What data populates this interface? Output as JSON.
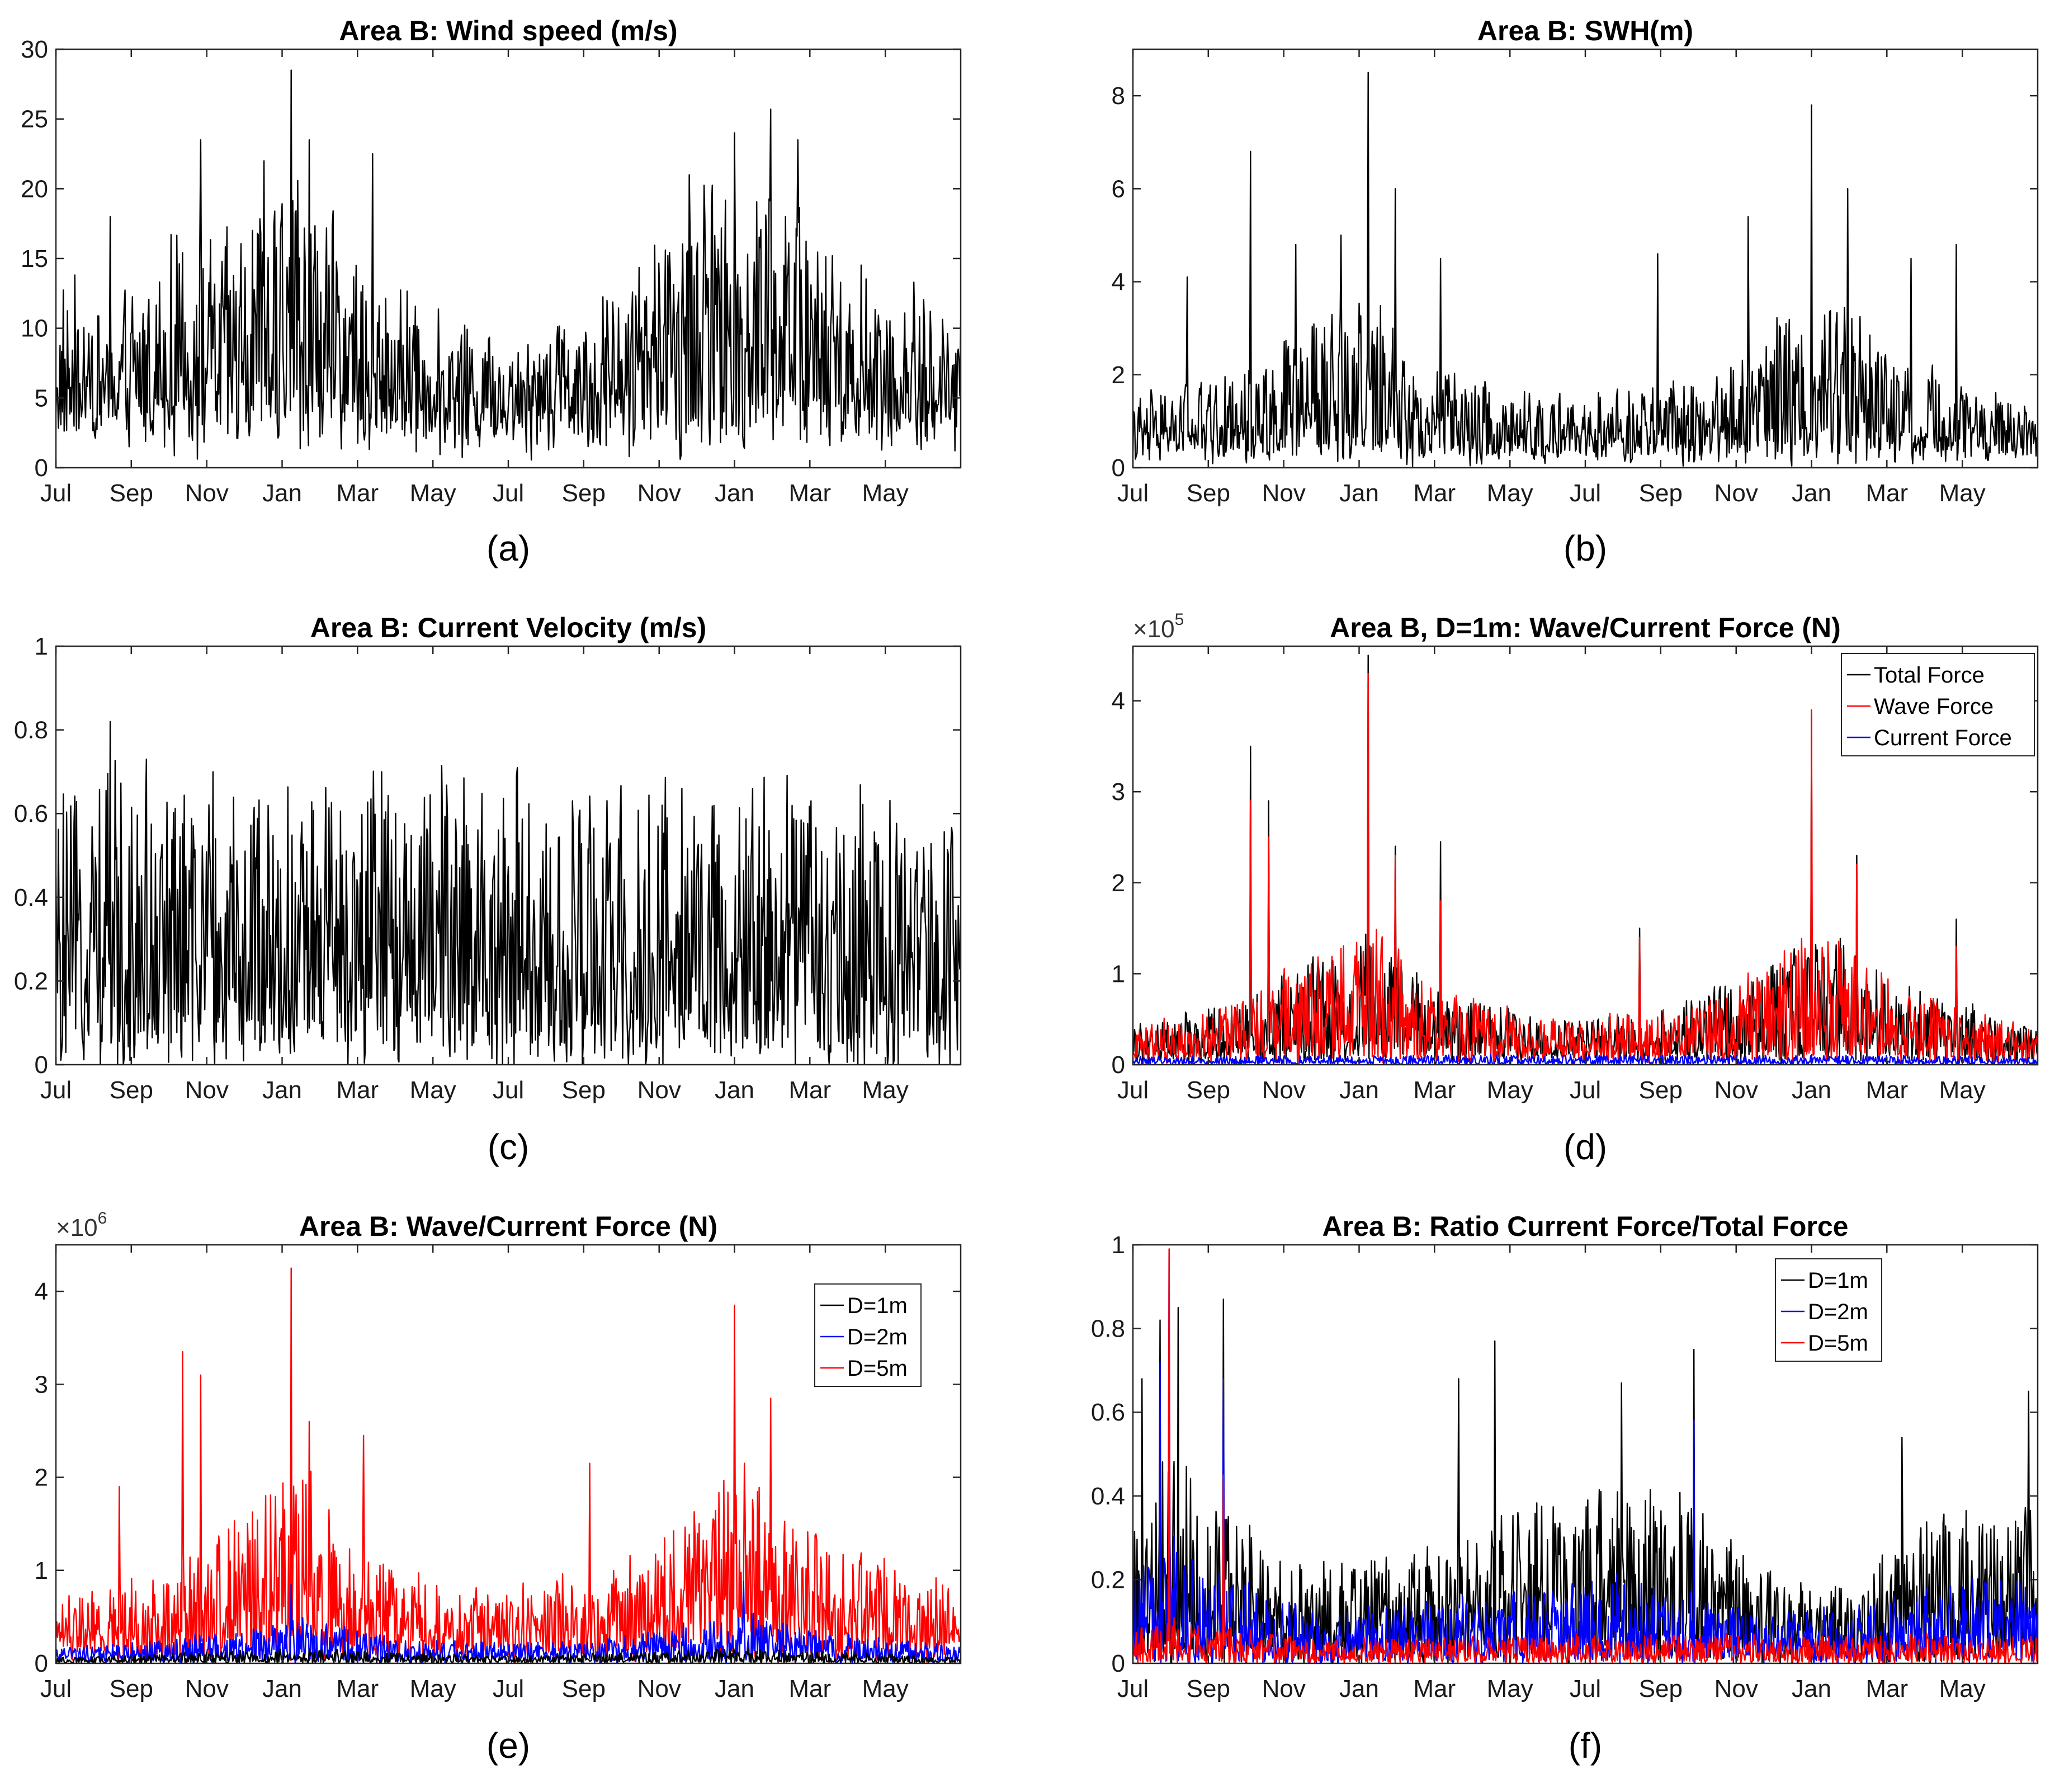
{
  "colors": {
    "black": "#000000",
    "red": "#ff0000",
    "blue": "#0000ff"
  },
  "chart_data": [
    {
      "id": "a",
      "type": "line",
      "caption": "(a)",
      "title": "Area B: Wind speed (m/s)",
      "x_tick_labels": [
        "Jul",
        "Sep",
        "Nov",
        "Jan",
        "Mar",
        "May",
        "Jul",
        "Sep",
        "Nov",
        "Jan",
        "Mar",
        "May"
      ],
      "ylim": [
        0,
        30
      ],
      "y_tick_labels": [
        "0",
        "5",
        "10",
        "15",
        "20",
        "25",
        "30"
      ],
      "series": [
        {
          "name": "Wind speed",
          "color": "#000000",
          "base": 4,
          "amp": 6,
          "envelope": [
            [
              0,
              9
            ],
            [
              0.06,
              8
            ],
            [
              0.12,
              12
            ],
            [
              0.17,
              13
            ],
            [
              0.21,
              14
            ],
            [
              0.26,
              18
            ],
            [
              0.3,
              14
            ],
            [
              0.36,
              10
            ],
            [
              0.45,
              7
            ],
            [
              0.52,
              7
            ],
            [
              0.6,
              9
            ],
            [
              0.67,
              13
            ],
            [
              0.72,
              17
            ],
            [
              0.78,
              18
            ],
            [
              0.82,
              15
            ],
            [
              0.88,
              11
            ],
            [
              0.94,
              9
            ],
            [
              1,
              8
            ]
          ],
          "peaks": [
            [
              0.06,
              18
            ],
            [
              0.16,
              23.5
            ],
            [
              0.23,
              22
            ],
            [
              0.26,
              28.5
            ],
            [
              0.28,
              23.5
            ],
            [
              0.35,
              22.5
            ],
            [
              0.7,
              21
            ],
            [
              0.75,
              24
            ],
            [
              0.79,
              25.7
            ],
            [
              0.82,
              23.5
            ]
          ]
        }
      ]
    },
    {
      "id": "b",
      "type": "line",
      "caption": "(b)",
      "title": "Area B: SWH(m)",
      "x_tick_labels": [
        "Jul",
        "Sep",
        "Nov",
        "Jan",
        "Mar",
        "May",
        "Jul",
        "Sep",
        "Nov",
        "Jan",
        "Mar",
        "May"
      ],
      "ylim": [
        0,
        9
      ],
      "y_tick_labels": [
        "0",
        "2",
        "4",
        "6",
        "8"
      ],
      "series": [
        {
          "name": "SWH",
          "color": "#000000",
          "base": 0.4,
          "amp": 0.7,
          "envelope": [
            [
              0,
              1
            ],
            [
              0.05,
              1.5
            ],
            [
              0.12,
              1.6
            ],
            [
              0.17,
              2.5
            ],
            [
              0.23,
              3
            ],
            [
              0.27,
              3.2
            ],
            [
              0.32,
              2
            ],
            [
              0.4,
              1.3
            ],
            [
              0.48,
              1.1
            ],
            [
              0.56,
              1.3
            ],
            [
              0.63,
              1.6
            ],
            [
              0.69,
              2.4
            ],
            [
              0.74,
              3.2
            ],
            [
              0.78,
              3.4
            ],
            [
              0.83,
              2.5
            ],
            [
              0.9,
              1.5
            ],
            [
              1,
              1
            ]
          ],
          "peaks": [
            [
              0.06,
              4.1
            ],
            [
              0.13,
              6.8
            ],
            [
              0.18,
              4.8
            ],
            [
              0.23,
              5
            ],
            [
              0.26,
              8.5
            ],
            [
              0.29,
              6
            ],
            [
              0.34,
              4.5
            ],
            [
              0.58,
              4.6
            ],
            [
              0.68,
              5.4
            ],
            [
              0.75,
              7.8
            ],
            [
              0.79,
              6
            ],
            [
              0.86,
              4.5
            ],
            [
              0.91,
              4.8
            ]
          ]
        }
      ]
    },
    {
      "id": "c",
      "type": "line",
      "caption": "(c)",
      "title": "Area B: Current Velocity (m/s)",
      "x_tick_labels": [
        "Jul",
        "Sep",
        "Nov",
        "Jan",
        "Mar",
        "May",
        "Jul",
        "Sep",
        "Nov",
        "Jan",
        "Mar",
        "May"
      ],
      "ylim": [
        0,
        1
      ],
      "y_tick_labels": [
        "0",
        "0.2",
        "0.4",
        "0.6",
        "0.8",
        "1"
      ],
      "series": [
        {
          "name": "Current velocity",
          "color": "#000000",
          "base": 0.05,
          "amp": 0.3,
          "envelope": [
            [
              0,
              0.55
            ],
            [
              0.06,
              0.65
            ],
            [
              0.12,
              0.6
            ],
            [
              0.25,
              0.6
            ],
            [
              0.4,
              0.62
            ],
            [
              0.55,
              0.6
            ],
            [
              0.7,
              0.6
            ],
            [
              0.85,
              0.6
            ],
            [
              1,
              0.55
            ]
          ],
          "peaks": [
            [
              0.06,
              0.82
            ],
            [
              0.1,
              0.73
            ],
            [
              0.36,
              0.7
            ],
            [
              0.51,
              0.71
            ],
            [
              0.77,
              0.66
            ]
          ]
        }
      ]
    },
    {
      "id": "d",
      "type": "line",
      "caption": "(d)",
      "title": "Area B, D=1m: Wave/Current Force (N)",
      "axis_multiplier": "×10",
      "axis_multiplier_exp": "5",
      "x_tick_labels": [
        "Jul",
        "Sep",
        "Nov",
        "Jan",
        "Mar",
        "May",
        "Jul",
        "Sep",
        "Nov",
        "Jan",
        "Mar",
        "May"
      ],
      "ylim": [
        0,
        4.6
      ],
      "y_tick_labels": [
        "0",
        "1",
        "2",
        "3",
        "4"
      ],
      "legend": [
        "Total Force",
        "Wave Force",
        "Current Force"
      ],
      "series": [
        {
          "name": "Total Force",
          "color": "#000000",
          "base": 0.1,
          "amp": 0.3,
          "envelope": [
            [
              0,
              0.3
            ],
            [
              0.12,
              0.6
            ],
            [
              0.2,
              1.1
            ],
            [
              0.27,
              1.4
            ],
            [
              0.32,
              0.8
            ],
            [
              0.45,
              0.4
            ],
            [
              0.6,
              0.5
            ],
            [
              0.7,
              1
            ],
            [
              0.77,
              1.4
            ],
            [
              0.84,
              0.8
            ],
            [
              1,
              0.3
            ]
          ],
          "peaks": [
            [
              0.13,
              3.5
            ],
            [
              0.15,
              2.9
            ],
            [
              0.26,
              4.5
            ],
            [
              0.29,
              2.4
            ],
            [
              0.34,
              2.45
            ],
            [
              0.56,
              1.5
            ],
            [
              0.75,
              3.85
            ],
            [
              0.8,
              2.3
            ],
            [
              0.91,
              1.6
            ]
          ]
        },
        {
          "name": "Wave Force",
          "color": "#ff0000",
          "base": 0.1,
          "amp": 0.3,
          "envelope": [
            [
              0,
              0.3
            ],
            [
              0.12,
              0.6
            ],
            [
              0.2,
              1.1
            ],
            [
              0.27,
              1.4
            ],
            [
              0.32,
              0.8
            ],
            [
              0.45,
              0.4
            ],
            [
              0.6,
              0.5
            ],
            [
              0.7,
              1
            ],
            [
              0.77,
              1.4
            ],
            [
              0.84,
              0.8
            ],
            [
              1,
              0.3
            ]
          ],
          "peaks": [
            [
              0.13,
              2.9
            ],
            [
              0.15,
              2.5
            ],
            [
              0.26,
              4.3
            ],
            [
              0.29,
              2.3
            ],
            [
              0.34,
              1.8
            ],
            [
              0.56,
              1.4
            ],
            [
              0.75,
              3.9
            ],
            [
              0.8,
              2.2
            ],
            [
              0.91,
              1.3
            ]
          ]
        },
        {
          "name": "Current Force",
          "color": "#0000ff",
          "base": 0.01,
          "amp": 0.04,
          "envelope": [
            [
              0,
              0.08
            ],
            [
              0.5,
              0.1
            ],
            [
              1,
              0.08
            ]
          ],
          "peaks": []
        }
      ]
    },
    {
      "id": "e",
      "type": "line",
      "caption": "(e)",
      "title": "Area B: Wave/Current Force (N)",
      "axis_multiplier": "×10",
      "axis_multiplier_exp": "6",
      "x_tick_labels": [
        "Jul",
        "Sep",
        "Nov",
        "Jan",
        "Mar",
        "May",
        "Jul",
        "Sep",
        "Nov",
        "Jan",
        "Mar",
        "May"
      ],
      "ylim": [
        0,
        4.5
      ],
      "y_tick_labels": [
        "0",
        "1",
        "2",
        "3",
        "4"
      ],
      "legend": [
        "D=1m",
        "D=2m",
        "D=5m"
      ],
      "series": [
        {
          "name": "D=5m",
          "color": "#ff0000",
          "base": 0.15,
          "amp": 0.45,
          "envelope": [
            [
              0,
              0.5
            ],
            [
              0.12,
              0.9
            ],
            [
              0.2,
              1.4
            ],
            [
              0.27,
              2
            ],
            [
              0.33,
              1.1
            ],
            [
              0.45,
              0.6
            ],
            [
              0.6,
              0.8
            ],
            [
              0.7,
              1.4
            ],
            [
              0.76,
              2
            ],
            [
              0.84,
              1.2
            ],
            [
              1,
              0.6
            ]
          ],
          "peaks": [
            [
              0.07,
              1.9
            ],
            [
              0.14,
              3.35
            ],
            [
              0.16,
              3.1
            ],
            [
              0.26,
              4.25
            ],
            [
              0.28,
              2.6
            ],
            [
              0.34,
              2.45
            ],
            [
              0.59,
              2.15
            ],
            [
              0.75,
              3.85
            ],
            [
              0.79,
              2.85
            ]
          ]
        },
        {
          "name": "D=2m",
          "color": "#0000ff",
          "base": 0.04,
          "amp": 0.12,
          "envelope": [
            [
              0,
              0.12
            ],
            [
              0.2,
              0.3
            ],
            [
              0.27,
              0.45
            ],
            [
              0.4,
              0.18
            ],
            [
              0.6,
              0.2
            ],
            [
              0.76,
              0.5
            ],
            [
              0.85,
              0.3
            ],
            [
              1,
              0.15
            ]
          ],
          "peaks": [
            [
              0.26,
              0.85
            ],
            [
              0.76,
              0.88
            ]
          ]
        },
        {
          "name": "D=1m",
          "color": "#000000",
          "base": 0.01,
          "amp": 0.04,
          "envelope": [
            [
              0,
              0.05
            ],
            [
              0.27,
              0.15
            ],
            [
              0.5,
              0.07
            ],
            [
              0.76,
              0.15
            ],
            [
              1,
              0.06
            ]
          ],
          "peaks": []
        }
      ]
    },
    {
      "id": "f",
      "type": "line",
      "caption": "(f)",
      "title": "Area B: Ratio Current Force/Total Force",
      "x_tick_labels": [
        "Jul",
        "Sep",
        "Nov",
        "Jan",
        "Mar",
        "May",
        "Jul",
        "Sep",
        "Nov",
        "Jan",
        "Mar",
        "May"
      ],
      "ylim": [
        0,
        1
      ],
      "y_tick_labels": [
        "0",
        "0.2",
        "0.4",
        "0.6",
        "0.8",
        "1"
      ],
      "legend": [
        "D=1m",
        "D=2m",
        "D=5m"
      ],
      "series": [
        {
          "name": "D=1m",
          "color": "#000000",
          "base": 0.02,
          "amp": 0.12,
          "envelope": [
            [
              0,
              0.3
            ],
            [
              0.05,
              0.5
            ],
            [
              0.1,
              0.35
            ],
            [
              0.2,
              0.2
            ],
            [
              0.35,
              0.25
            ],
            [
              0.45,
              0.35
            ],
            [
              0.55,
              0.4
            ],
            [
              0.62,
              0.35
            ],
            [
              0.7,
              0.2
            ],
            [
              0.8,
              0.15
            ],
            [
              0.85,
              0.3
            ],
            [
              1,
              0.35
            ]
          ],
          "peaks": [
            [
              0.01,
              0.68
            ],
            [
              0.03,
              0.82
            ],
            [
              0.05,
              0.85
            ],
            [
              0.1,
              0.87
            ],
            [
              0.36,
              0.68
            ],
            [
              0.4,
              0.77
            ],
            [
              0.54,
              0.67
            ],
            [
              0.62,
              0.75
            ],
            [
              0.85,
              0.54
            ],
            [
              0.99,
              0.65
            ]
          ]
        },
        {
          "name": "D=2m",
          "color": "#0000ff",
          "base": 0.01,
          "amp": 0.07,
          "envelope": [
            [
              0,
              0.2
            ],
            [
              0.05,
              0.3
            ],
            [
              0.1,
              0.2
            ],
            [
              0.2,
              0.1
            ],
            [
              0.4,
              0.15
            ],
            [
              0.55,
              0.2
            ],
            [
              0.7,
              0.1
            ],
            [
              0.85,
              0.15
            ],
            [
              1,
              0.2
            ]
          ],
          "peaks": [
            [
              0.04,
              0.99
            ],
            [
              0.03,
              0.72
            ],
            [
              0.1,
              0.68
            ],
            [
              0.62,
              0.58
            ]
          ]
        },
        {
          "name": "D=5m",
          "color": "#ff0000",
          "base": 0.005,
          "amp": 0.03,
          "envelope": [
            [
              0,
              0.08
            ],
            [
              0.04,
              0.1
            ],
            [
              0.2,
              0.05
            ],
            [
              0.5,
              0.06
            ],
            [
              1,
              0.06
            ]
          ],
          "peaks": [
            [
              0.04,
              0.99
            ],
            [
              0.1,
              0.45
            ]
          ]
        }
      ]
    }
  ]
}
